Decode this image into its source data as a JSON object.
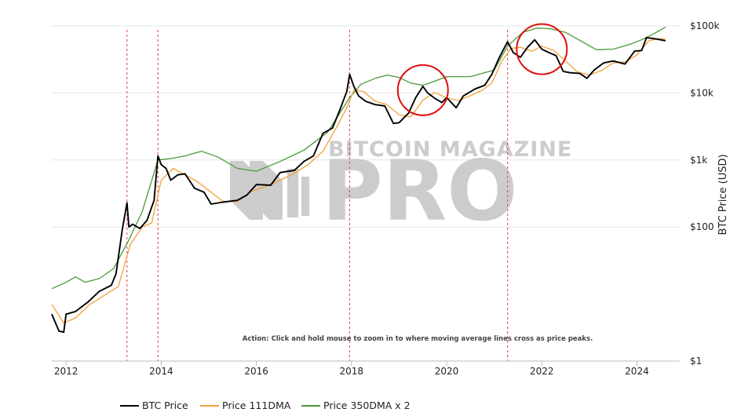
{
  "chart_data": {
    "type": "line",
    "ylabel": "BTC Price (USD)",
    "y_scale": "log",
    "ylim": [
      1,
      100000
    ],
    "xlim": [
      2011.7,
      2024.9
    ],
    "y_ticks": [
      {
        "value": 1,
        "label": "$1"
      },
      {
        "value": 100,
        "label": "$100"
      },
      {
        "value": 1000,
        "label": "$1k"
      },
      {
        "value": 10000,
        "label": "$10k"
      },
      {
        "value": 100000,
        "label": "$100k"
      }
    ],
    "x_ticks": [
      {
        "value": 2012,
        "label": "2012"
      },
      {
        "value": 2014,
        "label": "2014"
      },
      {
        "value": 2016,
        "label": "2016"
      },
      {
        "value": 2018,
        "label": "2018"
      },
      {
        "value": 2020,
        "label": "2020"
      },
      {
        "value": 2022,
        "label": "2022"
      },
      {
        "value": 2024,
        "label": "2024"
      }
    ],
    "grid": true,
    "legend_position": "bottom",
    "annotation": "Action: Click and hold mouse to zoom in to where moving average lines cross as price peaks.",
    "watermark": [
      "BITCOIN MAGAZINE",
      "PRO"
    ],
    "peak_markers": [
      2013.28,
      2013.93,
      2017.96,
      2021.28
    ],
    "highlight_circles": [
      {
        "x": 2019.5,
        "y": 11000
      },
      {
        "x": 2022.0,
        "y": 45000
      }
    ],
    "series": [
      {
        "name": "BTC Price",
        "color": "#000000",
        "x": [
          2011.7,
          2011.85,
          2011.95,
          2012.0,
          2012.2,
          2012.45,
          2012.7,
          2012.95,
          2013.05,
          2013.18,
          2013.28,
          2013.32,
          2013.4,
          2013.55,
          2013.7,
          2013.85,
          2013.93,
          2014.0,
          2014.1,
          2014.2,
          2014.35,
          2014.5,
          2014.7,
          2014.9,
          2015.05,
          2015.3,
          2015.6,
          2015.8,
          2016.0,
          2016.3,
          2016.5,
          2016.8,
          2017.0,
          2017.2,
          2017.4,
          2017.6,
          2017.75,
          2017.9,
          2017.96,
          2018.05,
          2018.15,
          2018.3,
          2018.5,
          2018.7,
          2018.88,
          2019.0,
          2019.2,
          2019.35,
          2019.5,
          2019.6,
          2019.75,
          2019.9,
          2020.0,
          2020.2,
          2020.35,
          2020.6,
          2020.8,
          2020.95,
          2021.1,
          2021.28,
          2021.4,
          2021.55,
          2021.7,
          2021.85,
          2022.0,
          2022.15,
          2022.3,
          2022.45,
          2022.6,
          2022.8,
          2022.95,
          2023.1,
          2023.3,
          2023.5,
          2023.75,
          2023.95,
          2024.1,
          2024.2,
          2024.4,
          2024.6
        ],
        "y": [
          5.0,
          2.8,
          2.7,
          5.0,
          5.5,
          7.5,
          11,
          13.5,
          20,
          90,
          230,
          100,
          110,
          95,
          125,
          250,
          1150,
          850,
          750,
          500,
          600,
          620,
          380,
          330,
          220,
          235,
          250,
          300,
          430,
          420,
          650,
          700,
          950,
          1150,
          2500,
          3000,
          5500,
          10500,
          19000,
          12500,
          9000,
          7500,
          6700,
          6400,
          3500,
          3600,
          5000,
          8500,
          12500,
          10000,
          8300,
          7200,
          8500,
          6000,
          9000,
          11500,
          13000,
          19000,
          33000,
          58000,
          40000,
          34000,
          48000,
          62000,
          45000,
          40000,
          36000,
          21000,
          20000,
          19500,
          16500,
          22000,
          28000,
          30000,
          27000,
          42000,
          43000,
          67000,
          64000,
          60000
        ]
      },
      {
        "name": "Price 111DMA",
        "color": "#f5a03a",
        "x": [
          2011.7,
          2011.95,
          2012.2,
          2012.5,
          2012.85,
          2013.1,
          2013.35,
          2013.6,
          2013.8,
          2014.0,
          2014.25,
          2014.5,
          2014.75,
          2015.0,
          2015.3,
          2015.6,
          2015.9,
          2016.2,
          2016.5,
          2016.8,
          2017.1,
          2017.4,
          2017.7,
          2017.9,
          2018.05,
          2018.25,
          2018.5,
          2018.75,
          2019.0,
          2019.25,
          2019.5,
          2019.75,
          2020.0,
          2020.25,
          2020.5,
          2020.75,
          2020.95,
          2021.15,
          2021.35,
          2021.55,
          2021.8,
          2022.0,
          2022.25,
          2022.5,
          2022.75,
          2023.0,
          2023.25,
          2023.5,
          2023.75,
          2024.0,
          2024.25,
          2024.5,
          2024.6
        ],
        "y": [
          7,
          3.7,
          4.4,
          7.0,
          10,
          13,
          55,
          100,
          115,
          500,
          750,
          600,
          480,
          350,
          240,
          240,
          340,
          400,
          500,
          630,
          870,
          1350,
          3200,
          6000,
          11000,
          10500,
          7500,
          6700,
          4700,
          4400,
          7800,
          10200,
          8400,
          7700,
          9100,
          11000,
          14000,
          29000,
          46000,
          48000,
          42000,
          50000,
          43000,
          30000,
          20500,
          18500,
          21500,
          28000,
          29000,
          37000,
          60000,
          65000,
          63000
        ]
      },
      {
        "name": "Price 350DMA x 2",
        "color": "#4a9a3a",
        "x": [
          2011.7,
          2012.0,
          2012.2,
          2012.4,
          2012.7,
          2013.0,
          2013.3,
          2013.6,
          2013.93,
          2014.2,
          2014.5,
          2014.85,
          2015.2,
          2015.6,
          2016.0,
          2016.5,
          2017.0,
          2017.5,
          2017.96,
          2018.2,
          2018.5,
          2018.75,
          2019.0,
          2019.25,
          2019.5,
          2019.75,
          2020.0,
          2020.5,
          2021.0,
          2021.28,
          2021.6,
          2021.9,
          2022.2,
          2022.5,
          2022.85,
          2023.15,
          2023.5,
          2023.85,
          2024.1,
          2024.35,
          2024.6
        ],
        "y": [
          12,
          15,
          18,
          15,
          17,
          24,
          60,
          170,
          1000,
          1050,
          1150,
          1350,
          1100,
          750,
          680,
          950,
          1400,
          2600,
          8500,
          13500,
          16500,
          18500,
          17000,
          14000,
          13000,
          15000,
          17500,
          17500,
          22000,
          50000,
          80000,
          93000,
          90000,
          80000,
          58000,
          44000,
          45000,
          53000,
          62000,
          76000,
          96000
        ]
      }
    ]
  }
}
